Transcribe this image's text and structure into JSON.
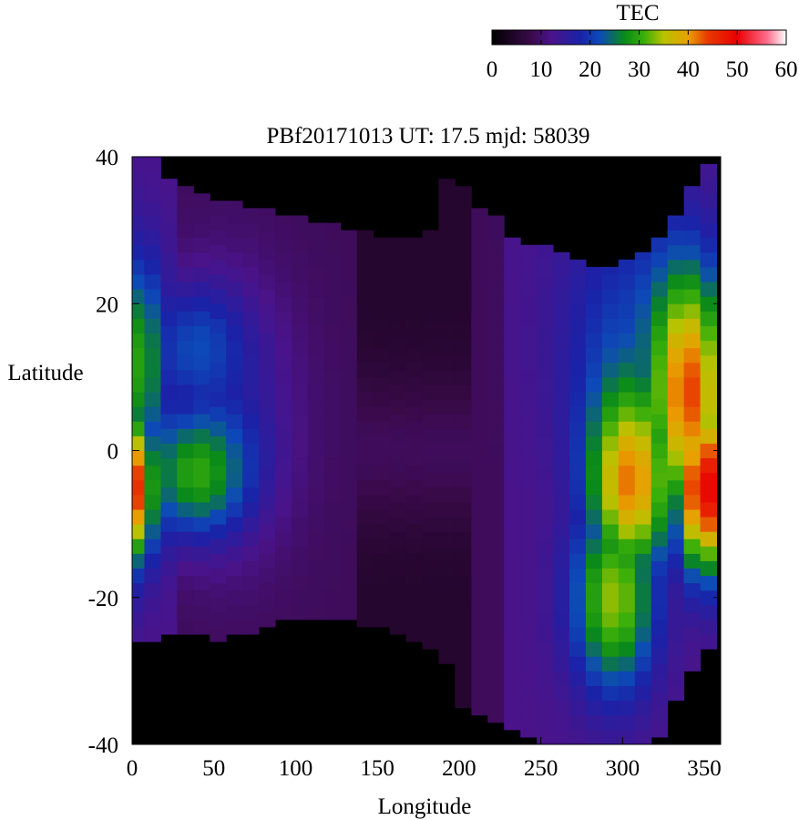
{
  "chart_data": {
    "type": "heatmap",
    "title": "PBf20171013  UT: 17.5  mjd: 58039",
    "xlabel": "Longitude",
    "ylabel": "Latitude",
    "xlim": [
      0,
      360
    ],
    "ylim": [
      -40,
      40
    ],
    "xticks": [
      0,
      50,
      100,
      150,
      200,
      250,
      300,
      350
    ],
    "xtick_labels": [
      "0",
      "50",
      "100",
      "150",
      "200",
      "250",
      "300",
      "350"
    ],
    "yticks": [
      -40,
      -20,
      0,
      20,
      40
    ],
    "ytick_labels": [
      "-40",
      "-20",
      "0",
      "20",
      "40"
    ],
    "colorbar": {
      "label": "TEC",
      "range": [
        0,
        60
      ],
      "ticks": [
        0,
        10,
        20,
        30,
        40,
        50,
        60
      ],
      "tick_labels": [
        "0",
        "10",
        "20",
        "30",
        "40",
        "50",
        "60"
      ],
      "placement": "top-right",
      "colormap": [
        [
          0,
          "#000000"
        ],
        [
          8,
          "#3a0a4a"
        ],
        [
          12,
          "#4a138a"
        ],
        [
          18,
          "#1a22a8"
        ],
        [
          22,
          "#0d4ab8"
        ],
        [
          27,
          "#0a8a1a"
        ],
        [
          31,
          "#3aae0a"
        ],
        [
          35,
          "#b8c200"
        ],
        [
          40,
          "#e8a000"
        ],
        [
          44,
          "#e83a00"
        ],
        [
          50,
          "#e80000"
        ],
        [
          56,
          "#ff6a8a"
        ],
        [
          60,
          "#ffffff"
        ]
      ]
    },
    "grid": false,
    "x_columns": [
      2.5,
      12.5,
      22.5,
      32.5,
      42.5,
      52.5,
      62.5,
      72.5,
      82.5,
      92.5,
      102.5,
      112.5,
      122.5,
      132.5,
      142.5,
      152.5,
      162.5,
      172.5,
      182.5,
      192.5,
      202.5,
      212.5,
      222.5,
      232.5,
      242.5,
      252.5,
      262.5,
      272.5,
      282.5,
      292.5,
      302.5,
      312.5,
      322.5,
      332.5,
      342.5,
      352.5
    ],
    "valid_lat_range_by_column": {
      "north_edge": [
        40,
        40,
        37,
        36,
        35,
        34,
        34,
        33,
        33,
        32,
        32,
        31,
        31,
        30,
        30,
        29,
        29,
        29,
        30,
        37,
        36,
        33,
        32,
        29,
        28,
        28,
        27,
        26,
        25,
        25,
        26,
        27,
        29,
        32,
        36,
        39
      ],
      "south_edge": [
        -26,
        -26,
        -25,
        -25,
        -25,
        -26,
        -25,
        -25,
        -24,
        -23,
        -23,
        -23,
        -23,
        -23,
        -24,
        -24,
        -25,
        -26,
        -27,
        -29,
        -35,
        -36,
        -37,
        -38,
        -39,
        -40,
        -40,
        -40,
        -40,
        -40,
        -40,
        -40,
        -39,
        -34,
        -30,
        -27
      ]
    },
    "features": [
      {
        "lon": 0,
        "lat": -5,
        "tec": 46,
        "lon_sigma": 10,
        "lat_sigma": 7
      },
      {
        "lon": 5,
        "lat": 12,
        "tec": 30,
        "lon_sigma": 10,
        "lat_sigma": 10
      },
      {
        "lon": 40,
        "lat": -3,
        "tec": 30,
        "lon_sigma": 22,
        "lat_sigma": 6
      },
      {
        "lon": 40,
        "lat": 14,
        "tec": 22,
        "lon_sigma": 20,
        "lat_sigma": 6
      },
      {
        "lon": 305,
        "lat": -4,
        "tec": 42,
        "lon_sigma": 18,
        "lat_sigma": 9
      },
      {
        "lon": 295,
        "lat": -20,
        "tec": 34,
        "lon_sigma": 18,
        "lat_sigma": 9
      },
      {
        "lon": 340,
        "lat": 8,
        "tec": 44,
        "lon_sigma": 16,
        "lat_sigma": 12
      },
      {
        "lon": 350,
        "lat": -5,
        "tec": 50,
        "lon_sigma": 12,
        "lat_sigma": 8
      }
    ]
  }
}
